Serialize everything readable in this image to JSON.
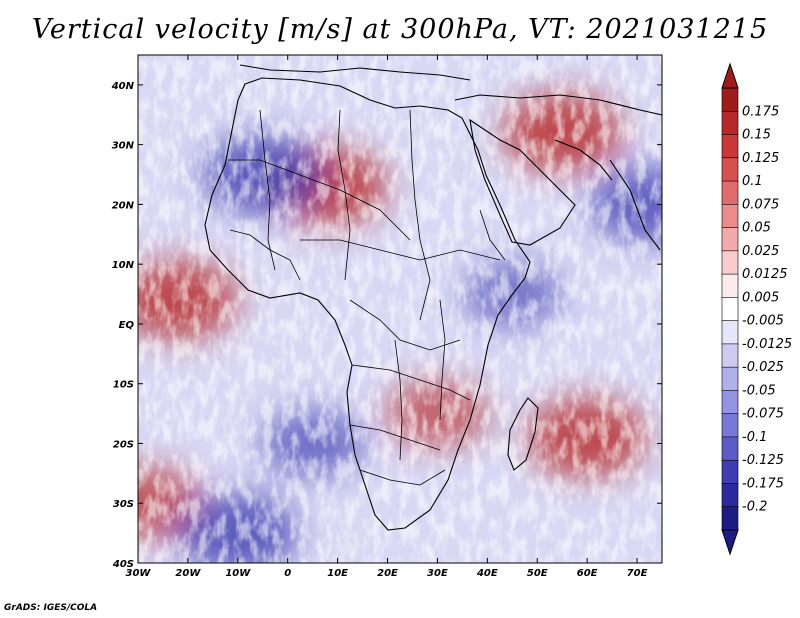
{
  "title": "Vertical velocity [m/s] at 300hPa, VT: 2021031215",
  "footer": "GrADS: IGES/COLA",
  "map": {
    "lon_range": [
      -30,
      75
    ],
    "lat_range": [
      -40,
      45
    ],
    "lon_ticks": [
      {
        "value": -30,
        "label": "30W"
      },
      {
        "value": -20,
        "label": "20W"
      },
      {
        "value": -10,
        "label": "10W"
      },
      {
        "value": 0,
        "label": "0"
      },
      {
        "value": 10,
        "label": "10E"
      },
      {
        "value": 20,
        "label": "20E"
      },
      {
        "value": 30,
        "label": "30E"
      },
      {
        "value": 40,
        "label": "40E"
      },
      {
        "value": 50,
        "label": "50E"
      },
      {
        "value": 60,
        "label": "60E"
      },
      {
        "value": 70,
        "label": "70E"
      }
    ],
    "lat_ticks": [
      {
        "value": -40,
        "label": "40S"
      },
      {
        "value": -30,
        "label": "30S"
      },
      {
        "value": -20,
        "label": "20S"
      },
      {
        "value": -10,
        "label": "10S"
      },
      {
        "value": 0,
        "label": "EQ"
      },
      {
        "value": 10,
        "label": "10N"
      },
      {
        "value": 20,
        "label": "20N"
      },
      {
        "value": 30,
        "label": "30N"
      },
      {
        "value": 40,
        "label": "40N"
      }
    ]
  },
  "colorbar": {
    "labels": [
      "0.175",
      "0.15",
      "0.125",
      "0.1",
      "0.075",
      "0.05",
      "0.025",
      "0.0125",
      "0.005",
      "-0.005",
      "-0.0125",
      "-0.025",
      "-0.05",
      "-0.075",
      "-0.1",
      "-0.125",
      "-0.175",
      "-0.2"
    ],
    "colors": [
      "#a01c1c",
      "#b82828",
      "#c83838",
      "#d65050",
      "#e06c6c",
      "#ea8c8c",
      "#f2aaaa",
      "#f8cccc",
      "#fdeaea",
      "#ffffff",
      "#e6e6fa",
      "#ccccf2",
      "#b0b0ea",
      "#9494e2",
      "#7878d6",
      "#5c5cc8",
      "#3e3eb2",
      "#2a2a9c",
      "#1c1c84"
    ],
    "top_color": "#a01c1c",
    "bottom_color": "#1c1c84"
  },
  "features": [
    {
      "name": "updraft",
      "lon": 8,
      "lat": 23,
      "sign": 1
    },
    {
      "name": "updraft",
      "lon": 55,
      "lat": 32,
      "sign": 1
    },
    {
      "name": "updraft",
      "lon": -22,
      "lat": 4,
      "sign": 1
    },
    {
      "name": "updraft",
      "lon": 30,
      "lat": -15,
      "sign": 0.7
    },
    {
      "name": "updraft",
      "lon": 60,
      "lat": -19,
      "sign": 1
    },
    {
      "name": "updraft",
      "lon": -28,
      "lat": -30,
      "sign": 0.8
    },
    {
      "name": "downdraft",
      "lon": -5,
      "lat": 25,
      "sign": -1
    },
    {
      "name": "downdraft",
      "lon": -10,
      "lat": -35,
      "sign": -1
    },
    {
      "name": "downdraft",
      "lon": 72,
      "lat": 20,
      "sign": -0.9
    },
    {
      "name": "downdraft",
      "lon": 45,
      "lat": 5,
      "sign": -0.6
    },
    {
      "name": "downdraft",
      "lon": 5,
      "lat": -20,
      "sign": -0.7
    }
  ]
}
